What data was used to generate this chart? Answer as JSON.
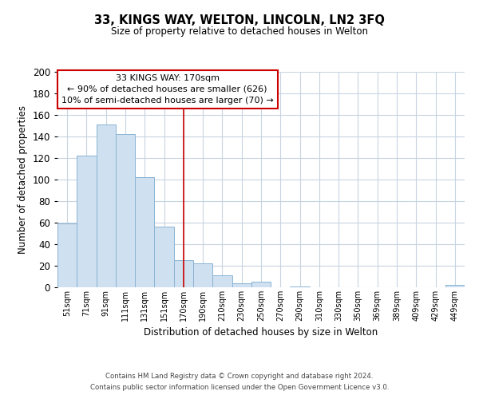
{
  "title": "33, KINGS WAY, WELTON, LINCOLN, LN2 3FQ",
  "subtitle": "Size of property relative to detached houses in Welton",
  "xlabel": "Distribution of detached houses by size in Welton",
  "ylabel": "Number of detached properties",
  "bar_color": "#cfe0f0",
  "bar_edge_color": "#8ab4d4",
  "background_color": "#ffffff",
  "grid_color": "#c8d4e0",
  "tick_labels": [
    "51sqm",
    "71sqm",
    "91sqm",
    "111sqm",
    "131sqm",
    "151sqm",
    "170sqm",
    "190sqm",
    "210sqm",
    "230sqm",
    "250sqm",
    "270sqm",
    "290sqm",
    "310sqm",
    "330sqm",
    "350sqm",
    "369sqm",
    "389sqm",
    "409sqm",
    "429sqm",
    "449sqm"
  ],
  "bar_values": [
    59,
    122,
    151,
    142,
    102,
    56,
    25,
    22,
    11,
    4,
    5,
    0,
    1,
    0,
    0,
    0,
    0,
    0,
    0,
    0,
    2
  ],
  "vline_x": 6,
  "vline_color": "#cc0000",
  "ylim": [
    0,
    200
  ],
  "yticks": [
    0,
    20,
    40,
    60,
    80,
    100,
    120,
    140,
    160,
    180,
    200
  ],
  "annotation_title": "33 KINGS WAY: 170sqm",
  "annotation_line1": "← 90% of detached houses are smaller (626)",
  "annotation_line2": "10% of semi-detached houses are larger (70) →",
  "annotation_box_color": "#ffffff",
  "annotation_border_color": "#cc0000",
  "footnote1": "Contains HM Land Registry data © Crown copyright and database right 2024.",
  "footnote2": "Contains public sector information licensed under the Open Government Licence v3.0."
}
